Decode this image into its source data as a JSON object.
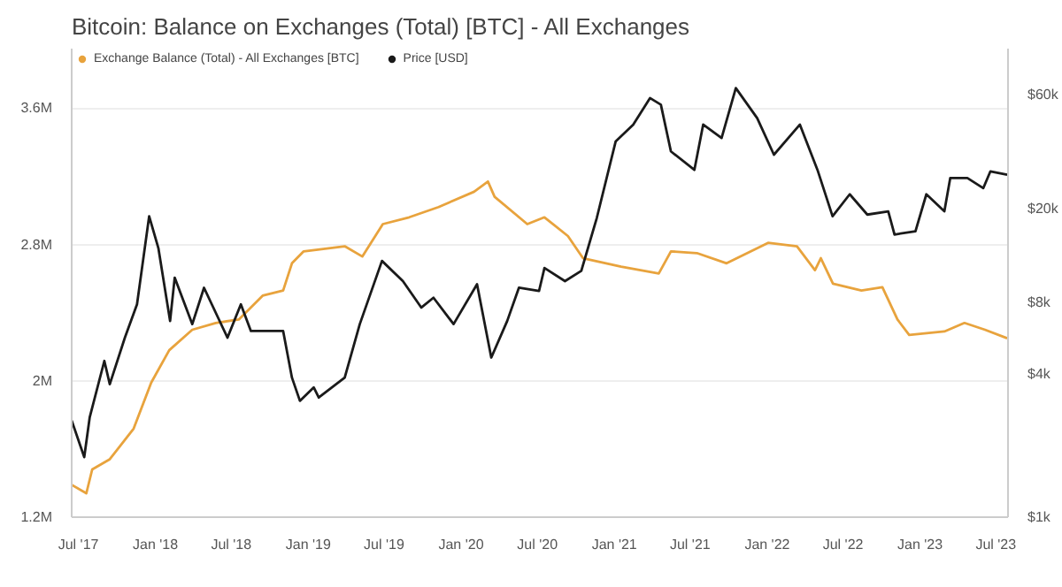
{
  "chart_data": {
    "type": "line",
    "title": "Bitcoin: Balance on Exchanges (Total) [BTC] - All Exchanges",
    "xlim": [
      "2017-06-15",
      "2023-07-30"
    ],
    "xticks": [
      {
        "value": "2017-07-01",
        "label": "Jul '17"
      },
      {
        "value": "2018-01-01",
        "label": "Jan '18"
      },
      {
        "value": "2018-07-01",
        "label": "Jul '18"
      },
      {
        "value": "2019-01-01",
        "label": "Jan '19"
      },
      {
        "value": "2019-07-01",
        "label": "Jul '19"
      },
      {
        "value": "2020-01-01",
        "label": "Jan '20"
      },
      {
        "value": "2020-07-01",
        "label": "Jul '20"
      },
      {
        "value": "2021-01-01",
        "label": "Jan '21"
      },
      {
        "value": "2021-07-01",
        "label": "Jul '21"
      },
      {
        "value": "2022-01-01",
        "label": "Jan '22"
      },
      {
        "value": "2022-07-01",
        "label": "Jul '22"
      },
      {
        "value": "2023-01-01",
        "label": "Jan '23"
      },
      {
        "value": "2023-07-01",
        "label": "Jul '23"
      }
    ],
    "ylim": [
      1200000,
      3950000
    ],
    "yticks": [
      {
        "value": 1200000,
        "label": "1.2M"
      },
      {
        "value": 2000000,
        "label": "2M"
      },
      {
        "value": 2800000,
        "label": "2.8M"
      },
      {
        "value": 3600000,
        "label": "3.6M"
      }
    ],
    "y2lim": [
      1000,
      94000
    ],
    "y2ticks": [
      {
        "value": 1000,
        "label": "$1k"
      },
      {
        "value": 4000,
        "label": "$4k"
      },
      {
        "value": 8000,
        "label": "$8k"
      },
      {
        "value": 20000,
        "label": "$20k"
      },
      {
        "value": 60000,
        "label": "$60k"
      }
    ],
    "log": "y2",
    "grid": "y",
    "legend": "top left",
    "series": [
      {
        "name": "Exchange Balance (Total) - All Exchanges [BTC]",
        "color": "#e8a33d",
        "x": [
          "2017-06-15",
          "2017-07-20",
          "2017-08-03",
          "2017-09-14",
          "2017-11-10",
          "2017-12-22",
          "2018-02-03",
          "2018-03-30",
          "2018-05-25",
          "2018-07-19",
          "2018-09-14",
          "2018-11-02",
          "2018-11-23",
          "2018-12-21",
          "2019-03-29",
          "2019-05-10",
          "2019-06-28",
          "2019-08-30",
          "2019-11-08",
          "2020-02-01",
          "2020-03-05",
          "2020-03-21",
          "2020-06-07",
          "2020-07-18",
          "2020-09-12",
          "2020-10-18",
          "2021-01-17",
          "2021-04-17",
          "2021-05-16",
          "2021-07-17",
          "2021-09-26",
          "2022-01-03",
          "2022-03-13",
          "2022-04-25",
          "2022-05-09",
          "2022-06-07",
          "2022-08-14",
          "2022-10-03",
          "2022-11-08",
          "2022-12-06",
          "2023-02-28",
          "2023-04-17",
          "2023-06-05",
          "2023-07-28"
        ],
        "values": [
          1390000,
          1340000,
          1480000,
          1540000,
          1720000,
          1990000,
          2180000,
          2300000,
          2340000,
          2360000,
          2500000,
          2530000,
          2690000,
          2760000,
          2790000,
          2730000,
          2920000,
          2960000,
          3020000,
          3110000,
          3170000,
          3080000,
          2920000,
          2960000,
          2850000,
          2720000,
          2670000,
          2630000,
          2760000,
          2750000,
          2690000,
          2810000,
          2790000,
          2650000,
          2720000,
          2570000,
          2530000,
          2550000,
          2360000,
          2270000,
          2290000,
          2340000,
          2300000,
          2250000
        ]
      },
      {
        "name": "Price [USD]",
        "color": "#1a1a1a",
        "axis": "y2",
        "x": [
          "2017-06-15",
          "2017-07-15",
          "2017-07-28",
          "2017-09-01",
          "2017-09-14",
          "2017-10-20",
          "2017-11-18",
          "2017-12-17",
          "2018-01-08",
          "2018-02-05",
          "2018-02-16",
          "2018-03-30",
          "2018-04-27",
          "2018-06-22",
          "2018-07-24",
          "2018-08-17",
          "2018-11-02",
          "2018-11-23",
          "2018-12-12",
          "2019-01-14",
          "2019-01-26",
          "2019-03-29",
          "2019-05-04",
          "2019-06-26",
          "2019-08-15",
          "2019-09-28",
          "2019-10-27",
          "2019-12-14",
          "2020-02-08",
          "2020-03-13",
          "2020-04-20",
          "2020-05-18",
          "2020-07-05",
          "2020-07-18",
          "2020-09-05",
          "2020-10-14",
          "2020-11-20",
          "2021-01-04",
          "2021-02-15",
          "2021-03-27",
          "2021-04-22",
          "2021-05-16",
          "2021-07-11",
          "2021-08-01",
          "2021-09-14",
          "2021-10-18",
          "2021-12-08",
          "2022-01-17",
          "2022-03-20",
          "2022-05-01",
          "2022-06-06",
          "2022-07-17",
          "2022-08-28",
          "2022-10-17",
          "2022-11-01",
          "2022-12-21",
          "2023-01-16",
          "2023-02-28",
          "2023-03-14",
          "2023-04-24",
          "2023-06-01",
          "2023-06-18",
          "2023-07-28"
        ],
        "values": [
          2550,
          1790,
          2630,
          4550,
          3630,
          5700,
          7880,
          18500,
          13600,
          6700,
          10200,
          6500,
          9250,
          5700,
          7880,
          6080,
          6080,
          3870,
          3090,
          3520,
          3190,
          3870,
          6500,
          12000,
          9860,
          7630,
          8400,
          6500,
          9570,
          4700,
          6700,
          9250,
          8960,
          11200,
          9860,
          10900,
          18200,
          38200,
          45000,
          58200,
          54600,
          34700,
          29000,
          45000,
          39500,
          64100,
          47900,
          33600,
          45000,
          29000,
          18500,
          22900,
          18800,
          19400,
          15500,
          16000,
          22900,
          19400,
          26800,
          26800,
          24300,
          28600,
          27700
        ]
      }
    ]
  }
}
